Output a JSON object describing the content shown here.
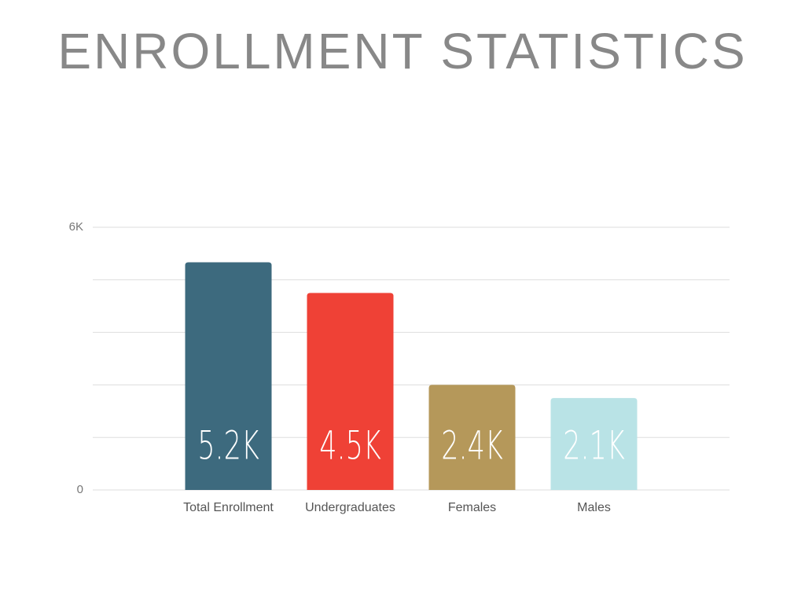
{
  "chart_data": {
    "type": "bar",
    "title": "ENROLLMENT STATISTICS",
    "categories": [
      "Total Enrollment",
      "Undergraduates",
      "Females",
      "Males"
    ],
    "values": [
      5200,
      4500,
      2400,
      2100
    ],
    "value_labels": [
      "5.2K",
      "4.5K",
      "2.4K",
      "2.1K"
    ],
    "colors": [
      "#3d6a7e",
      "#ef4136",
      "#b5985a",
      "#b9e3e6"
    ],
    "ylim": [
      0,
      6000
    ],
    "yticks": [
      0,
      {
        "value": 6000,
        "label": "6K"
      }
    ],
    "minor_yticks": [
      1200,
      2400,
      3600,
      4800
    ],
    "grid": true
  }
}
